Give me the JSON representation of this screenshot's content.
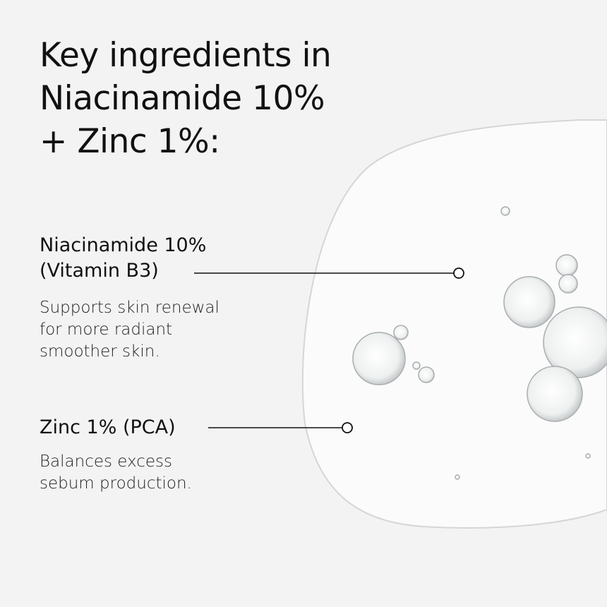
{
  "title": {
    "lines": [
      "Key ingredients in",
      "Niacinamide 10%",
      "+ Zinc 1%:"
    ]
  },
  "ingredients": [
    {
      "name_lines": [
        "Niacinamide 10%",
        "(Vitamin B3)"
      ],
      "description_lines": [
        "Supports skin renewal",
        "for more radiant",
        "smoother skin."
      ]
    },
    {
      "name_lines": [
        "Zinc 1% (PCA)"
      ],
      "description_lines": [
        "Balances excess",
        "sebum production."
      ]
    }
  ],
  "colors": {
    "background": "#f3f3f3",
    "serum": "#fbfbfb",
    "text": "#111111"
  }
}
